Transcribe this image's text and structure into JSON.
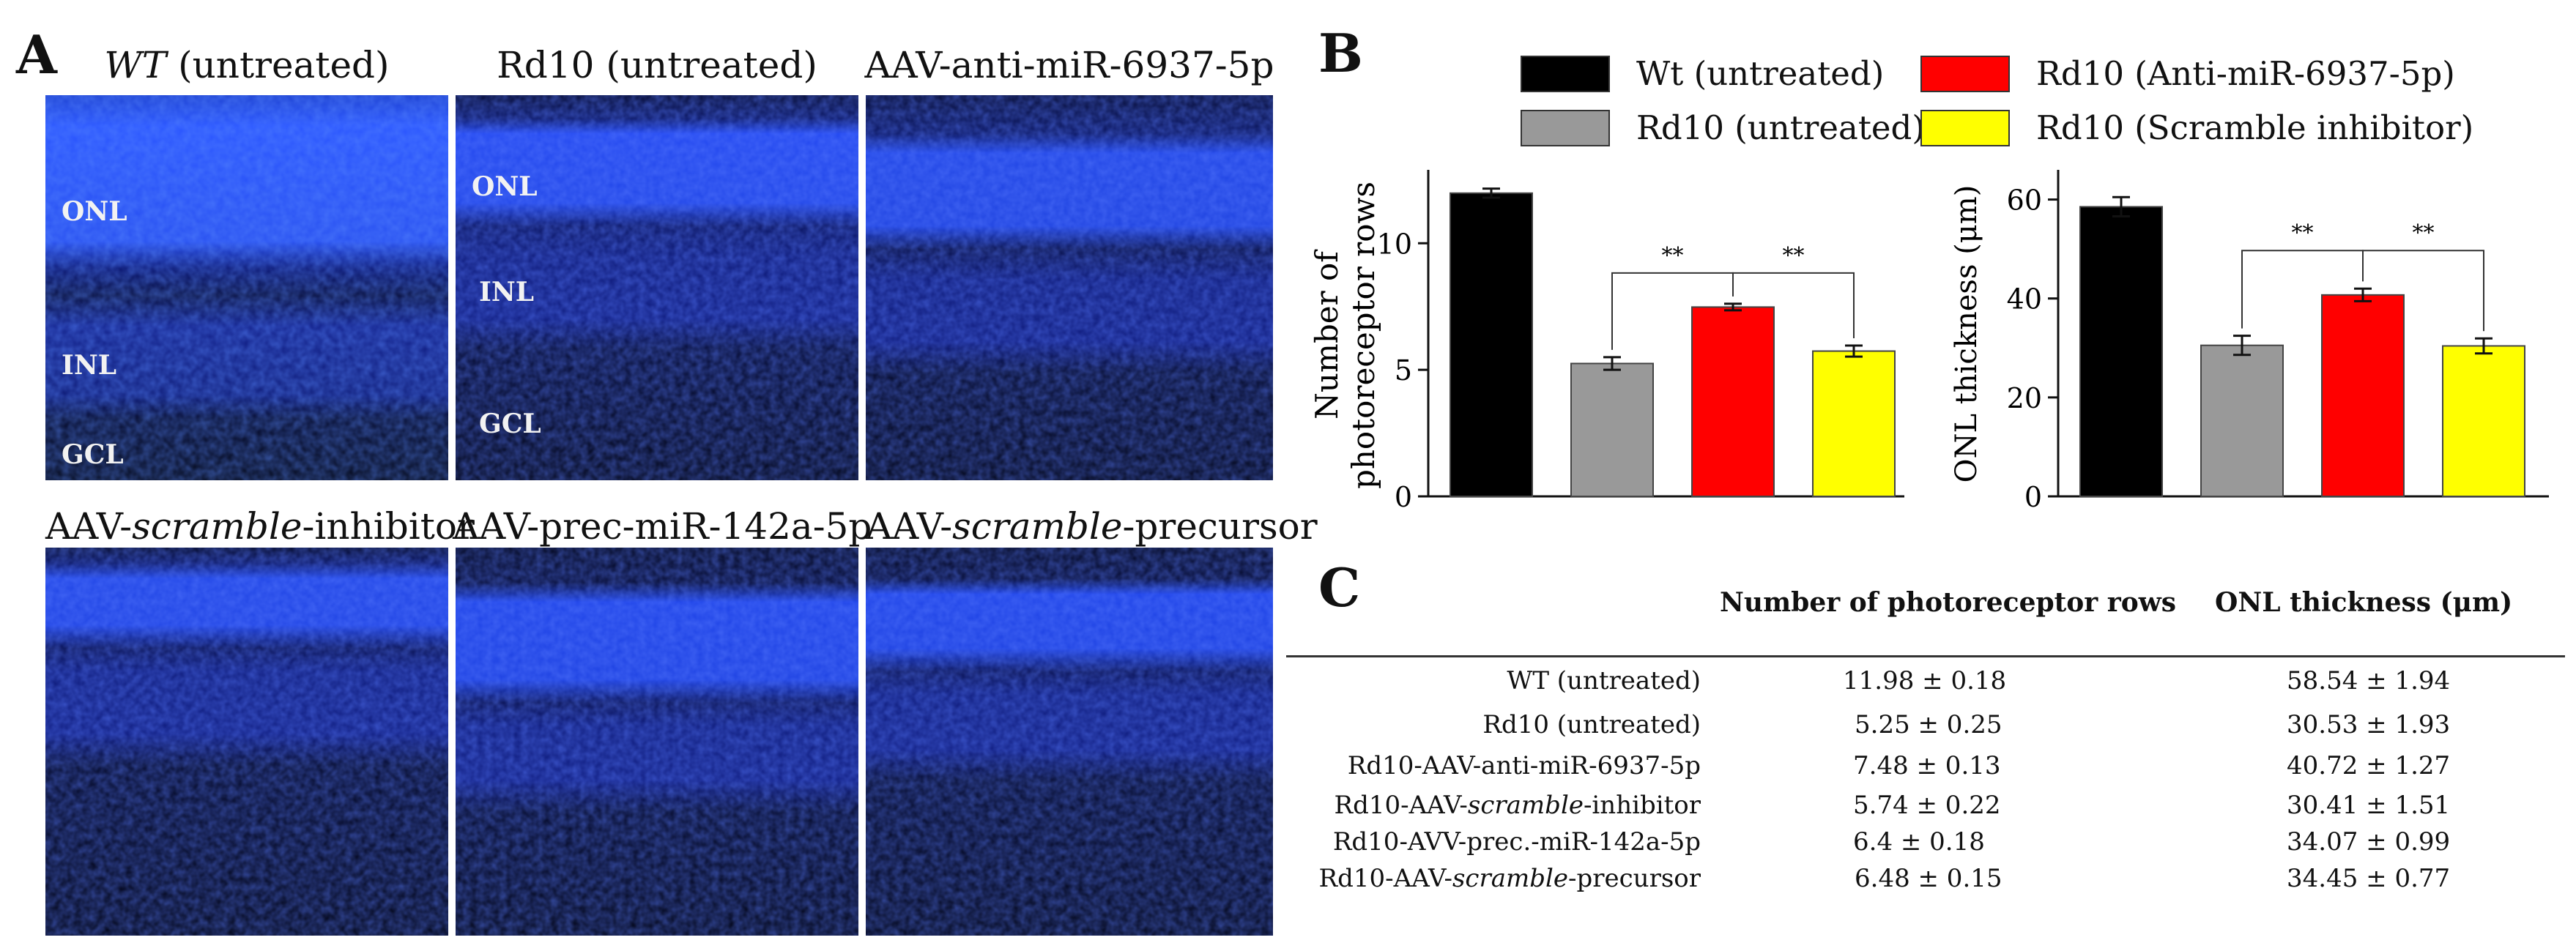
{
  "panels": {
    "a_label": "A",
    "b_label": "B",
    "c_label": "C"
  },
  "micrographs": [
    {
      "title_italic": "WT",
      "title_rest": " (untreated)",
      "labels": [
        "ONL",
        "INL",
        "GCL"
      ]
    },
    {
      "title_italic": "",
      "title_rest": "Rd10 (untreated)",
      "labels": [
        "ONL",
        "INL",
        "GCL"
      ]
    },
    {
      "title_italic": "",
      "title_rest": "AAV-anti-miR-6937-5p",
      "labels": []
    },
    {
      "title_pre": "AAV-",
      "title_italic": "scramble",
      "title_rest": "-inhibitor",
      "labels": []
    },
    {
      "title_italic": "",
      "title_rest": "AAV-prec-miR-142a-5p",
      "labels": []
    },
    {
      "title_pre": "AAV-",
      "title_italic": "scramble",
      "title_rest": "-precursor",
      "labels": []
    }
  ],
  "legend": [
    {
      "label": "Wt (untreated)",
      "color": "#000000"
    },
    {
      "label": "Rd10 (Anti-miR-6937-5p)",
      "color": "#ff0000"
    },
    {
      "label": "Rd10 (untreated)",
      "color": "#999999"
    },
    {
      "label": "Rd10 (Scramble inhibitor)",
      "color": "#ffff00"
    }
  ],
  "chart_data": [
    {
      "type": "bar",
      "ylabel": "Number of photoreceptor rows",
      "ylabel_line1": "Number of",
      "ylabel_line2": "photoreceptor rows",
      "ylim": [
        0,
        12.9
      ],
      "yticks": [
        0,
        5,
        10
      ],
      "categories": [
        "Wt (untreated)",
        "Rd10 (untreated)",
        "Rd10 (Anti-miR-6937-5p)",
        "Rd10 (Scramble inhibitor)"
      ],
      "values": [
        11.98,
        5.25,
        7.48,
        5.74
      ],
      "errors": [
        0.18,
        0.25,
        0.13,
        0.22
      ],
      "colors": [
        "#000000",
        "#999999",
        "#ff0000",
        "#ffff00"
      ],
      "significance": [
        {
          "from": 1,
          "to": 2,
          "label": "**"
        },
        {
          "from": 2,
          "to": 3,
          "label": "**"
        }
      ]
    },
    {
      "type": "bar",
      "ylabel": "ONL thickness (μm)",
      "ylim": [
        0,
        66
      ],
      "yticks": [
        0,
        20,
        40,
        60
      ],
      "categories": [
        "Wt (untreated)",
        "Rd10 (untreated)",
        "Rd10 (Anti-miR-6937-5p)",
        "Rd10 (Scramble inhibitor)"
      ],
      "values": [
        58.54,
        30.53,
        40.72,
        30.41
      ],
      "errors": [
        1.94,
        1.93,
        1.27,
        1.51
      ],
      "colors": [
        "#000000",
        "#999999",
        "#ff0000",
        "#ffff00"
      ],
      "significance": [
        {
          "from": 1,
          "to": 2,
          "label": "**"
        },
        {
          "from": 2,
          "to": 3,
          "label": "**"
        }
      ]
    }
  ],
  "table": {
    "col1": "Number of photoreceptor rows",
    "col2": "ONL thickness (μm)",
    "rows": [
      {
        "pre": "WT (untreated)",
        "italic": "",
        "post": "",
        "rows": "11.98 ± 0.18",
        "onl": "58.54 ± 1.94"
      },
      {
        "pre": "Rd10 (untreated)",
        "italic": "",
        "post": "",
        "rows": "5.25 ± 0.25",
        "onl": "30.53 ± 1.93"
      },
      {
        "pre": "Rd10-AAV-anti-miR-6937-5p",
        "italic": "",
        "post": "",
        "rows": "7.48 ± 0.13",
        "onl": "40.72 ± 1.27"
      },
      {
        "pre": "Rd10-AAV-",
        "italic": "scramble",
        "post": "-inhibitor",
        "rows": "5.74 ± 0.22",
        "onl": "30.41 ± 1.51"
      },
      {
        "pre": "Rd10-AVV-prec.-miR-142a-5p",
        "italic": "",
        "post": "",
        "rows": "6.4 ± 0.18",
        "onl": "34.07 ± 0.99"
      },
      {
        "pre": "Rd10-AAV-",
        "italic": "scramble",
        "post": "-precursor",
        "rows": "6.48 ± 0.15",
        "onl": "34.45 ± 0.77"
      }
    ]
  }
}
